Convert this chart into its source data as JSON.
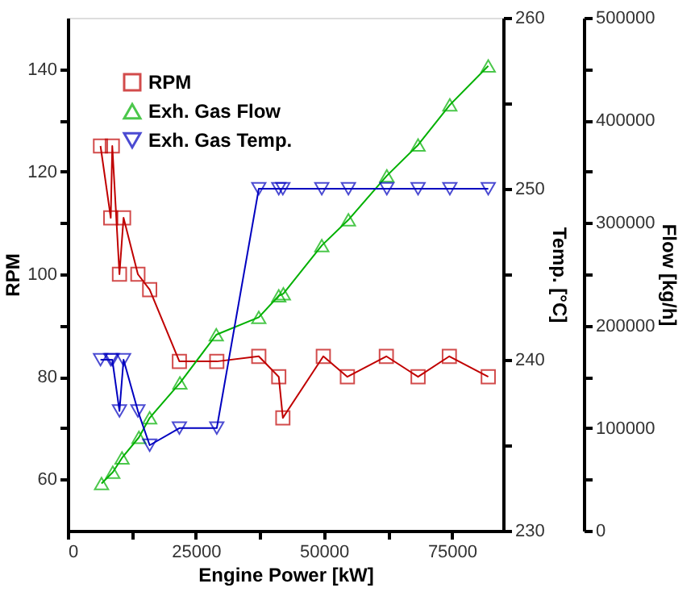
{
  "chart_data": {
    "type": "line",
    "xlabel": "Engine Power [kW]",
    "ylabel": "RPM",
    "y2label": "Temp. [°C]",
    "y3label": "Flow [kg/h]",
    "xlim": [
      0,
      85000
    ],
    "xticks": [
      0,
      {
        "value": 12500,
        "label": null
      },
      25000,
      {
        "value": 37500,
        "label": null
      },
      50000,
      {
        "value": 62500,
        "label": null
      },
      75000
    ],
    "ylim": [
      50,
      150
    ],
    "yticks": [
      60,
      {
        "value": 70,
        "label": null
      },
      80,
      {
        "value": 90,
        "label": null
      },
      100,
      {
        "value": 110,
        "label": null
      },
      120,
      {
        "value": 130,
        "label": null
      },
      140
    ],
    "y2lim": [
      230,
      260
    ],
    "y2ticks": [
      230,
      {
        "value": 235,
        "label": null
      },
      240,
      {
        "value": 245,
        "label": null
      },
      250,
      {
        "value": 255,
        "label": null
      },
      260
    ],
    "y3lim": [
      0,
      500000
    ],
    "y3ticks": [
      0,
      {
        "value": 50000,
        "label": null
      },
      100000,
      {
        "value": 150000,
        "label": null
      },
      200000,
      {
        "value": 250000,
        "label": null
      },
      300000,
      {
        "value": 350000,
        "label": null
      },
      400000,
      {
        "value": 450000,
        "label": null
      },
      500000
    ],
    "grid": false,
    "legend": "top left",
    "line_style": "solid",
    "series": [
      {
        "name": "RPM",
        "color": "#c00000",
        "marker": "square",
        "axis": "y",
        "x": [
          6400,
          8400,
          8700,
          10100,
          10900,
          13700,
          16000,
          21800,
          29100,
          37300,
          41200,
          42000,
          49900,
          54600,
          62200,
          68400,
          74500,
          82100
        ],
        "values": [
          125,
          111,
          125,
          100,
          111,
          100,
          97,
          83,
          83,
          84,
          80,
          72,
          84,
          80,
          84,
          80,
          84,
          80
        ]
      },
      {
        "name": "Exh. Gas Flow",
        "color": "#00b000",
        "marker": "triangle",
        "axis": "y3",
        "x": [
          6600,
          8800,
          10600,
          13900,
          16000,
          21900,
          29000,
          37300,
          41200,
          42100,
          49600,
          54800,
          62300,
          68400,
          74600,
          82100
        ],
        "values": [
          46000,
          57000,
          71000,
          91000,
          110000,
          144000,
          191000,
          208000,
          229000,
          231000,
          278000,
          303000,
          346000,
          376000,
          415000,
          453000
        ]
      },
      {
        "name": "Exh. Gas Temp.",
        "color": "#0000c0",
        "marker": "triangle-down",
        "axis": "y2",
        "x": [
          6400,
          8400,
          8700,
          10100,
          10900,
          13700,
          16000,
          21800,
          29100,
          37300,
          41200,
          42000,
          49600,
          54800,
          62300,
          68400,
          74600,
          82100
        ],
        "values": [
          240,
          240,
          240,
          237,
          240,
          237,
          235,
          236,
          236,
          250,
          250,
          250,
          250,
          250,
          250,
          250,
          250,
          250
        ]
      }
    ]
  }
}
